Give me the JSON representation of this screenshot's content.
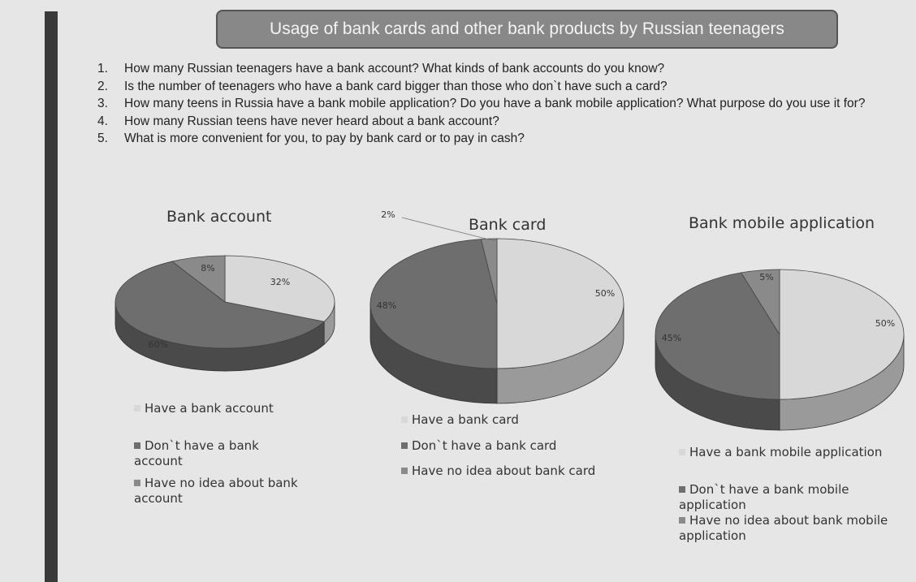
{
  "slide_title": "Usage of bank cards and other bank products by Russian teenagers",
  "questions": [
    {
      "num": "1.",
      "text": "How many Russian teenagers have a bank account? What kinds of bank accounts do you know?"
    },
    {
      "num": "2.",
      "text": "Is the number of teenagers who have a bank card bigger than those who don`t have such a card?"
    },
    {
      "num": "3.",
      "text": "How many teens in Russia have a bank mobile application? Do you have a bank mobile application? What purpose do you use it for?"
    },
    {
      "num": "4.",
      "text": "How many Russian teens have never heard about a bank account?"
    },
    {
      "num": "5.",
      "text": "What is more convenient for you, to pay by bank card or to pay in cash?"
    }
  ],
  "colors": {
    "have": "#d8d8d8",
    "dont": "#6e6e6e",
    "no_idea": "#8a8a8a"
  },
  "chart_data": [
    {
      "type": "pie",
      "title": "Bank account",
      "categories": [
        "Have a bank account",
        "Don`t have a bank account",
        "Have no idea about bank account"
      ],
      "values": [
        32,
        60,
        8
      ],
      "labels": [
        "32%",
        "60%",
        "8%"
      ]
    },
    {
      "type": "pie",
      "title": "Bank card",
      "categories": [
        "Have a bank card",
        "Don`t have a bank card",
        "Have no idea about bank card"
      ],
      "values": [
        50,
        48,
        2
      ],
      "labels": [
        "50%",
        "48%",
        "2%"
      ]
    },
    {
      "type": "pie",
      "title": "Bank mobile application",
      "categories": [
        "Have a bank mobile application",
        "Don`t have a bank mobile application",
        "Have no idea about bank mobile application"
      ],
      "values": [
        50,
        45,
        5
      ],
      "labels": [
        "50%",
        "45%",
        "5%"
      ]
    }
  ]
}
